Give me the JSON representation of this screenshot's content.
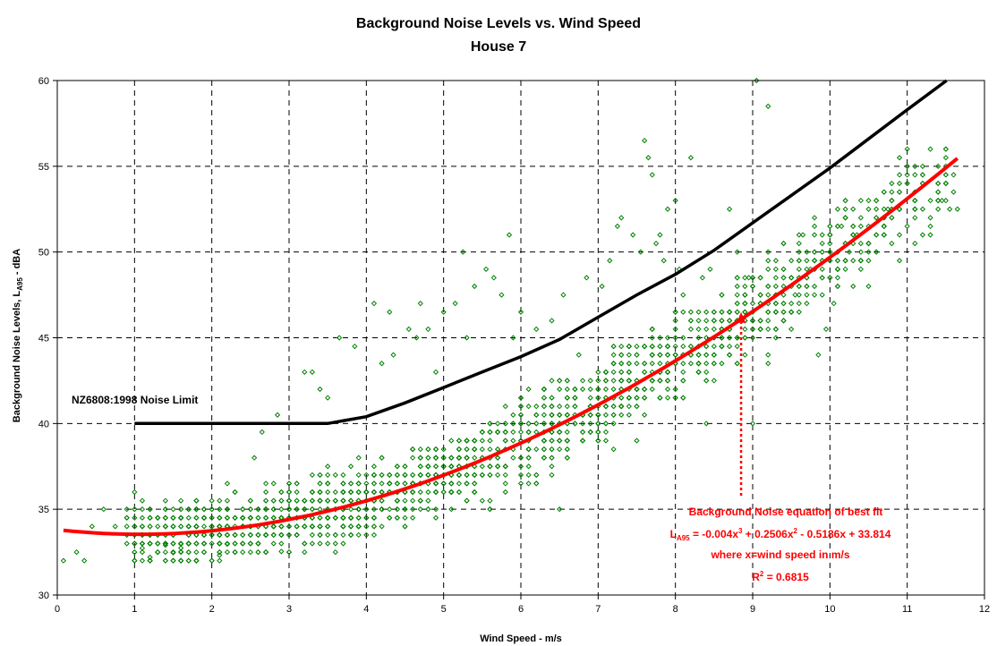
{
  "chart_data": {
    "type": "scatter",
    "title": "Background Noise Levels vs. Wind Speed",
    "subtitle": "House 7",
    "xlabel": "Wind Speed - m/s",
    "ylabel": {
      "prefix": "Background Noise Levels, L",
      "sub": "A95",
      "suffix": " - dBA"
    },
    "xlim": [
      0,
      12
    ],
    "ylim": [
      30,
      60
    ],
    "xticks": [
      0,
      1,
      2,
      3,
      4,
      5,
      6,
      7,
      8,
      9,
      10,
      11,
      12
    ],
    "yticks": [
      30,
      35,
      40,
      45,
      50,
      55,
      60
    ],
    "grid": true,
    "colors": {
      "points": "#008000",
      "limit_line": "#000000",
      "fit_line": "#ff0000"
    },
    "limit_label": "NZ6808:1998 Noise Limit",
    "limit_line": {
      "name": "NZ6808:1998 Noise Limit",
      "points": [
        [
          1,
          40
        ],
        [
          3.5,
          40
        ],
        [
          4,
          40.4
        ],
        [
          4.5,
          41.2
        ],
        [
          5,
          42.1
        ],
        [
          5.5,
          43
        ],
        [
          6,
          43.9
        ],
        [
          6.5,
          44.9
        ],
        [
          7,
          46.2
        ],
        [
          7.5,
          47.5
        ],
        [
          8,
          48.7
        ],
        [
          8.5,
          50.1
        ],
        [
          9,
          51.7
        ],
        [
          9.5,
          53.3
        ],
        [
          10,
          54.9
        ],
        [
          10.5,
          56.6
        ],
        [
          11,
          58.3
        ],
        [
          11.6,
          60.3
        ]
      ]
    },
    "fit": {
      "name": "Background Noise equation of best fit",
      "coefficients": {
        "a3": -0.004,
        "a2": 0.2506,
        "a1": -0.5186,
        "a0": 33.814
      },
      "x_range": [
        0.08,
        11.65
      ],
      "equation_prefix": "L",
      "equation_sub": "A95",
      "equation_body": [
        {
          "t": " = -0.004x"
        },
        {
          "t": "3",
          "sup": true
        },
        {
          "t": " + 0.2506x"
        },
        {
          "t": "2",
          "sup": true
        },
        {
          "t": " - 0.5186x + 33.814"
        }
      ],
      "where": "where x=wind speed in m/s",
      "r2_prefix": "R",
      "r2_sup": "2",
      "r2_value": " = 0.6815",
      "arrow_target": [
        8.85,
        46.5
      ]
    },
    "scatter_seed": {
      "approx_points": 1900,
      "clusters": [
        {
          "x_range": [
            0.9,
            5.5
          ],
          "y_center_fit": true,
          "spread": 2.2
        },
        {
          "x_range": [
            5.5,
            9.5
          ],
          "y_center_fit": true,
          "spread": 2.8
        },
        {
          "x_range": [
            9.5,
            11.7
          ],
          "y_center_fit": true,
          "spread": 2.4
        }
      ]
    },
    "outliers": [
      [
        0.08,
        32.0
      ],
      [
        0.25,
        32.5
      ],
      [
        0.35,
        32.0
      ],
      [
        0.45,
        34.0
      ],
      [
        0.6,
        35.0
      ],
      [
        0.75,
        34.0
      ],
      [
        2.2,
        36.5
      ],
      [
        2.55,
        38.0
      ],
      [
        2.65,
        39.5
      ],
      [
        2.85,
        40.5
      ],
      [
        3.2,
        43.0
      ],
      [
        3.3,
        43.0
      ],
      [
        3.4,
        42.0
      ],
      [
        3.5,
        41.5
      ],
      [
        3.65,
        45.0
      ],
      [
        3.85,
        44.5
      ],
      [
        4.1,
        47.0
      ],
      [
        4.2,
        43.5
      ],
      [
        4.3,
        46.5
      ],
      [
        4.35,
        44.0
      ],
      [
        4.55,
        45.5
      ],
      [
        4.65,
        45.0
      ],
      [
        4.7,
        47.0
      ],
      [
        4.8,
        45.5
      ],
      [
        4.9,
        43.0
      ],
      [
        5.0,
        46.5
      ],
      [
        5.15,
        47.0
      ],
      [
        5.25,
        50.0
      ],
      [
        5.3,
        45.0
      ],
      [
        5.4,
        48.0
      ],
      [
        5.55,
        49.0
      ],
      [
        5.65,
        48.5
      ],
      [
        5.75,
        47.5
      ],
      [
        5.85,
        51.0
      ],
      [
        5.9,
        45.0
      ],
      [
        6.0,
        46.5
      ],
      [
        6.2,
        45.5
      ],
      [
        6.4,
        46.0
      ],
      [
        6.55,
        47.5
      ],
      [
        6.75,
        44.0
      ],
      [
        6.85,
        48.5
      ],
      [
        7.05,
        48.0
      ],
      [
        7.15,
        49.5
      ],
      [
        7.25,
        51.5
      ],
      [
        7.3,
        52.0
      ],
      [
        7.45,
        51.0
      ],
      [
        7.55,
        50.0
      ],
      [
        7.6,
        56.5
      ],
      [
        7.65,
        55.5
      ],
      [
        7.7,
        54.5
      ],
      [
        7.75,
        50.5
      ],
      [
        7.8,
        51.0
      ],
      [
        7.85,
        49.5
      ],
      [
        7.9,
        52.5
      ],
      [
        8.0,
        53.0
      ],
      [
        8.05,
        49.0
      ],
      [
        8.2,
        55.5
      ],
      [
        8.35,
        48.5
      ],
      [
        8.45,
        49.0
      ],
      [
        8.6,
        47.5
      ],
      [
        8.7,
        52.5
      ],
      [
        8.8,
        50.0
      ],
      [
        8.95,
        48.5
      ],
      [
        9.05,
        60.0
      ],
      [
        9.2,
        58.5
      ],
      [
        9.3,
        49.0
      ],
      [
        9.4,
        48.0
      ],
      [
        9.55,
        47.5
      ],
      [
        9.65,
        51.0
      ],
      [
        9.75,
        49.0
      ],
      [
        9.85,
        44.0
      ],
      [
        9.95,
        45.5
      ],
      [
        10.05,
        47.0
      ],
      [
        10.15,
        51.5
      ],
      [
        10.25,
        50.0
      ],
      [
        10.35,
        51.0
      ],
      [
        10.5,
        48.0
      ],
      [
        10.6,
        52.0
      ],
      [
        10.7,
        53.5
      ],
      [
        10.75,
        52.5
      ],
      [
        10.9,
        49.5
      ],
      [
        11.0,
        55.0
      ],
      [
        11.1,
        50.5
      ],
      [
        11.2,
        51.0
      ],
      [
        11.3,
        51.0
      ],
      [
        11.45,
        53.0
      ],
      [
        11.55,
        52.5
      ],
      [
        11.65,
        52.5
      ],
      [
        8.4,
        40.0
      ],
      [
        9.0,
        40.0
      ],
      [
        6.5,
        35.0
      ],
      [
        4.1,
        33.5
      ],
      [
        3.0,
        32.5
      ],
      [
        1.0,
        32.0
      ]
    ]
  }
}
